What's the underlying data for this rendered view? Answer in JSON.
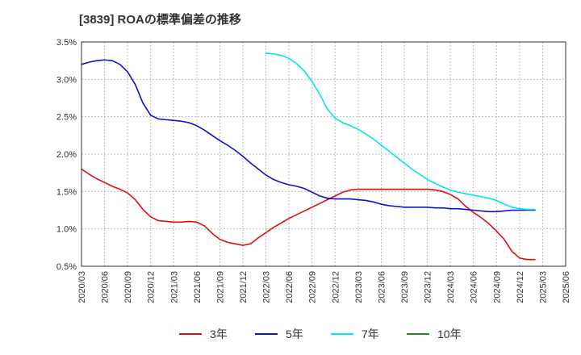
{
  "chart_data": {
    "type": "line",
    "title": "[3839]  ROAの標準偏差の推移",
    "xlabel": "",
    "ylabel": "",
    "ylim": [
      0.5,
      3.5
    ],
    "yticks": [
      0.5,
      1.0,
      1.5,
      2.0,
      2.5,
      3.0,
      3.5
    ],
    "ytick_labels": [
      "0.5%",
      "1.0%",
      "1.5%",
      "2.0%",
      "2.5%",
      "3.0%",
      "3.5%"
    ],
    "x_categories": [
      "2020/03",
      "2020/06",
      "2020/09",
      "2020/12",
      "2021/03",
      "2021/06",
      "2021/09",
      "2021/12",
      "2022/03",
      "2022/06",
      "2022/09",
      "2022/12",
      "2023/03",
      "2023/06",
      "2023/09",
      "2023/12",
      "2024/03",
      "2024/06",
      "2024/09",
      "2024/12",
      "2025/03",
      "2025/06"
    ],
    "grid": true,
    "legend_position": "bottom",
    "series": [
      {
        "name": "3年",
        "color": "#dd1111",
        "x": [
          0,
          1,
          2,
          3,
          4,
          5,
          6,
          7,
          8,
          9,
          10,
          11,
          12,
          13,
          14,
          15,
          16,
          17,
          18,
          19,
          20,
          21,
          22,
          23,
          24,
          25,
          26,
          27,
          28,
          29,
          30,
          31,
          32,
          33,
          34,
          35,
          36,
          37,
          38,
          39,
          40,
          41,
          42,
          43,
          44,
          45,
          46,
          47,
          48,
          49,
          50,
          51,
          52,
          53,
          54,
          55,
          56,
          57,
          58,
          59,
          60
        ],
        "values": [
          1.8,
          1.73,
          1.67,
          1.62,
          1.57,
          1.53,
          1.48,
          1.39,
          1.26,
          1.16,
          1.11,
          1.1,
          1.09,
          1.09,
          1.1,
          1.09,
          1.04,
          0.94,
          0.86,
          0.82,
          0.8,
          0.78,
          0.8,
          0.88,
          0.95,
          1.02,
          1.08,
          1.14,
          1.19,
          1.24,
          1.29,
          1.34,
          1.39,
          1.44,
          1.49,
          1.52,
          1.53,
          1.53,
          1.53,
          1.53,
          1.53,
          1.53,
          1.53,
          1.53,
          1.53,
          1.53,
          1.52,
          1.5,
          1.46,
          1.4,
          1.3,
          1.22,
          1.15,
          1.07,
          0.97,
          0.86,
          0.7,
          0.61,
          0.59,
          0.59,
          null
        ]
      },
      {
        "name": "5年",
        "color": "#1111cc",
        "x": [
          0,
          1,
          2,
          3,
          4,
          5,
          6,
          7,
          8,
          9,
          10,
          11,
          12,
          13,
          14,
          15,
          16,
          17,
          18,
          19,
          20,
          21,
          22,
          23,
          24,
          25,
          26,
          27,
          28,
          29,
          30,
          31,
          32,
          33,
          34,
          35,
          36,
          37,
          38,
          39,
          40,
          41,
          42,
          43,
          44,
          45,
          46,
          47,
          48,
          49,
          50,
          51,
          52,
          53,
          54,
          55,
          56,
          57,
          58,
          59,
          60
        ],
        "values": [
          3.2,
          3.23,
          3.25,
          3.26,
          3.25,
          3.2,
          3.1,
          2.93,
          2.68,
          2.52,
          2.47,
          2.46,
          2.45,
          2.44,
          2.42,
          2.38,
          2.32,
          2.25,
          2.18,
          2.12,
          2.05,
          1.97,
          1.88,
          1.8,
          1.72,
          1.66,
          1.62,
          1.59,
          1.57,
          1.54,
          1.49,
          1.44,
          1.41,
          1.4,
          1.4,
          1.4,
          1.39,
          1.38,
          1.36,
          1.33,
          1.31,
          1.3,
          1.29,
          1.29,
          1.29,
          1.29,
          1.28,
          1.28,
          1.27,
          1.27,
          1.26,
          1.25,
          1.24,
          1.23,
          1.23,
          1.24,
          1.25,
          1.25,
          1.25,
          1.25,
          null
        ]
      },
      {
        "name": "7年",
        "color": "#00e5ee",
        "x": [
          24,
          25,
          26,
          27,
          28,
          29,
          30,
          31,
          32,
          33,
          34,
          35,
          36,
          37,
          38,
          39,
          40,
          41,
          42,
          43,
          44,
          45,
          46,
          47,
          48,
          49,
          50,
          51,
          52,
          53,
          54,
          55,
          56,
          57,
          58,
          59
        ],
        "values": [
          3.35,
          3.34,
          3.32,
          3.28,
          3.21,
          3.11,
          2.97,
          2.8,
          2.6,
          2.48,
          2.42,
          2.38,
          2.33,
          2.27,
          2.2,
          2.12,
          2.04,
          1.96,
          1.88,
          1.8,
          1.73,
          1.66,
          1.61,
          1.56,
          1.52,
          1.49,
          1.47,
          1.45,
          1.43,
          1.41,
          1.38,
          1.33,
          1.29,
          1.27,
          1.26,
          1.26
        ]
      },
      {
        "name": "10年",
        "color": "#228822",
        "x": [],
        "values": []
      }
    ]
  }
}
